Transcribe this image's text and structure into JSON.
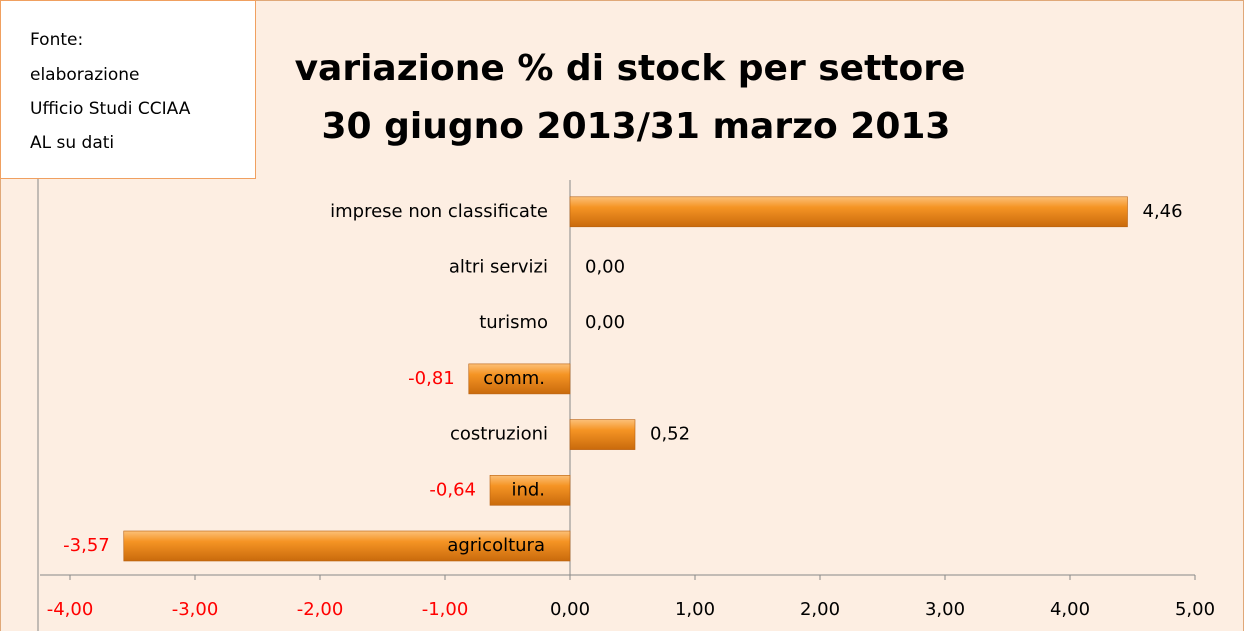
{
  "chart_data": {
    "type": "bar",
    "orientation": "horizontal",
    "note": [
      "Fonte:",
      "elaborazione",
      "Ufficio Studi CCIAA",
      "AL su dati"
    ],
    "title": [
      "variazione % di stock per settore",
      "30 giugno 2013/31 marzo 2013"
    ],
    "categories": [
      "agricoltura",
      "ind.",
      "costruzioni",
      "comm.",
      "turismo",
      "altri servizi",
      "imprese non classificate"
    ],
    "values": [
      -3.57,
      -0.64,
      0.52,
      -0.81,
      0.0,
      0.0,
      4.46
    ],
    "value_labels": [
      "-3,57",
      "-0,64",
      "0,52",
      "-0,81",
      "0,00",
      "0,00",
      "4,46"
    ],
    "color": "#f08a1c",
    "negative_label_color": "#ff0000",
    "xlim": [
      -4,
      5
    ],
    "xticks": [
      {
        "value": -4,
        "label": "-4,00"
      },
      {
        "value": -3,
        "label": "-3,00"
      },
      {
        "value": -2,
        "label": "-2,00"
      },
      {
        "value": -1,
        "label": "-1,00"
      },
      {
        "value": 0,
        "label": "0,00"
      },
      {
        "value": 1,
        "label": "1,00"
      },
      {
        "value": 2,
        "label": "2,00"
      },
      {
        "value": 3,
        "label": "3,00"
      },
      {
        "value": 4,
        "label": "4,00"
      },
      {
        "value": 5,
        "label": "5,00"
      }
    ],
    "grid": false
  }
}
